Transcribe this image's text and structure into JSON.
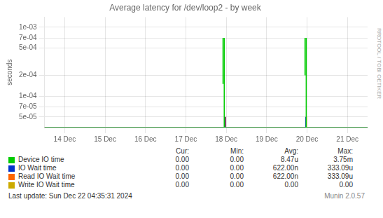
{
  "chart_data": {
    "type": "line",
    "title": "Average latency for /dev/loop2 - by week",
    "y_label": "seconds",
    "log": "y",
    "grid": true,
    "legend": "bottom",
    "xlim": [
      -0.5,
      7.5
    ],
    "xticks": [
      {
        "value": 0,
        "label": "14 Dec"
      },
      {
        "value": 1,
        "label": "15 Dec"
      },
      {
        "value": 2,
        "label": "16 Dec"
      },
      {
        "value": 3,
        "label": "17 Dec"
      },
      {
        "value": 4,
        "label": "18 Dec"
      },
      {
        "value": 5,
        "label": "19 Dec"
      },
      {
        "value": 6,
        "label": "20 Dec"
      },
      {
        "value": 7,
        "label": "21 Dec"
      }
    ],
    "ylim": [
      3.5e-05,
      0.0014
    ],
    "yticks": [
      {
        "value": 5e-05,
        "label": "5e-05"
      },
      {
        "value": 7e-05,
        "label": "7e-05"
      },
      {
        "value": 0.0001,
        "label": "1e-04"
      },
      {
        "value": 0.0002,
        "label": "2e-04"
      },
      {
        "value": 0.0005,
        "label": "5e-04"
      },
      {
        "value": 0.0007,
        "label": "7e-04"
      },
      {
        "value": 0.001,
        "label": "1e-03"
      }
    ],
    "stat_columns": [
      "Cur:",
      "Min:",
      "Avg:",
      "Max:"
    ],
    "series": [
      {
        "name": "Device IO time",
        "color": "#00cc00",
        "baseline": 3.5e-05,
        "x": [
          3.92,
          3.95,
          5.95,
          5.98
        ],
        "low": [
          0.00015,
          3.5e-05,
          0.0002,
          3.5e-05
        ],
        "high": [
          0.0007,
          0.0007,
          0.0007,
          0.0007
        ],
        "stats": [
          "0.00",
          "0.00",
          "8.47u",
          "3.75m"
        ]
      },
      {
        "name": "IO Wait time",
        "color": "#0033cc",
        "baseline": 3.5e-05,
        "x": [
          3.97,
          5.97
        ],
        "low": [
          3.5e-05,
          3.5e-05
        ],
        "high": [
          5e-05,
          5e-05
        ],
        "stats": [
          "0.00",
          "0.00",
          "622.00n",
          "333.09u"
        ]
      },
      {
        "name": "Read IO Wait time",
        "color": "#ff6600",
        "baseline": 3.5e-05,
        "x": [
          3.985,
          5.985
        ],
        "low": [
          3.5e-05,
          3.5e-05
        ],
        "high": [
          5e-05,
          5e-05
        ],
        "stats": [
          "0.00",
          "0.00",
          "622.00n",
          "333.09u"
        ]
      },
      {
        "name": "Write IO Wait time",
        "color": "#ccaa00",
        "baseline": 3.5e-05,
        "x": [],
        "low": [],
        "high": [],
        "stats": [
          "0.00",
          "0.00",
          "0.00",
          "0.00"
        ]
      }
    ],
    "annotations": [
      "RRDTOOL / TOBI OETIKER",
      "Last update: Sun Dec 22 04:35:31 2024",
      "Munin 2.0.57"
    ]
  }
}
